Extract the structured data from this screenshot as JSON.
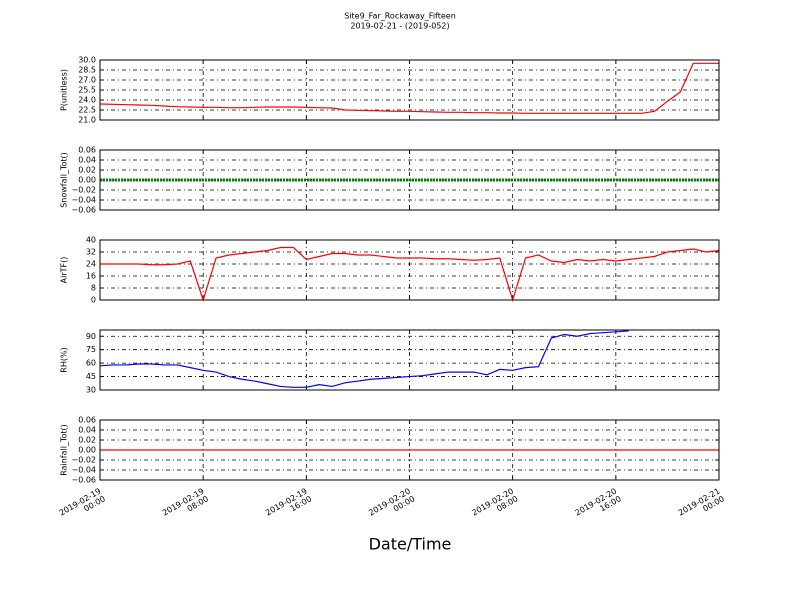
{
  "chart_data": [
    {
      "type": "line",
      "title": "Site9_Far_Rockaway_Fifteen",
      "subtitle": "2019-02-21 - (2019-052)",
      "ylabel": "P(unitless)",
      "color": "#ff0000",
      "x": [
        "2019-02-19 00:00",
        "2019-02-19 01:00",
        "2019-02-19 02:00",
        "2019-02-19 03:00",
        "2019-02-19 04:00",
        "2019-02-19 05:00",
        "2019-02-19 06:00",
        "2019-02-19 07:00",
        "2019-02-19 08:00",
        "2019-02-19 09:00",
        "2019-02-19 10:00",
        "2019-02-19 11:00",
        "2019-02-19 12:00",
        "2019-02-19 13:00",
        "2019-02-19 14:00",
        "2019-02-19 15:00",
        "2019-02-19 16:00",
        "2019-02-19 17:00",
        "2019-02-19 18:00",
        "2019-02-19 19:00",
        "2019-02-19 20:00",
        "2019-02-19 21:00",
        "2019-02-19 22:00",
        "2019-02-19 23:00",
        "2019-02-20 00:00",
        "2019-02-20 01:00",
        "2019-02-20 02:00",
        "2019-02-20 03:00",
        "2019-02-20 04:00",
        "2019-02-20 05:00",
        "2019-02-20 06:00",
        "2019-02-20 07:00",
        "2019-02-20 08:00",
        "2019-02-20 09:00",
        "2019-02-20 10:00",
        "2019-02-20 11:00",
        "2019-02-20 12:00",
        "2019-02-20 13:00",
        "2019-02-20 14:00",
        "2019-02-20 15:00",
        "2019-02-20 16:00",
        "2019-02-20 17:00",
        "2019-02-20 18:00",
        "2019-02-20 19:00",
        "2019-02-20 20:00",
        "2019-02-20 21:00",
        "2019-02-20 22:00",
        "2019-02-20 23:00",
        "2019-02-21 00:00"
      ],
      "values": [
        23.4,
        23.35,
        23.3,
        23.25,
        23.2,
        23.1,
        23.0,
        22.95,
        22.9,
        22.9,
        22.85,
        22.85,
        22.9,
        22.95,
        22.95,
        22.95,
        22.9,
        22.85,
        22.8,
        22.5,
        22.45,
        22.4,
        22.35,
        22.3,
        22.3,
        22.25,
        22.2,
        22.15,
        22.15,
        22.1,
        22.1,
        22.05,
        22.05,
        22.0,
        22.0,
        22.0,
        22.0,
        22.0,
        22.0,
        22.0,
        22.0,
        22.0,
        22.0,
        22.3,
        23.8,
        25.2,
        29.5,
        29.5,
        29.5
      ],
      "xlim": [
        "2019-02-19 00:00",
        "2019-02-21 00:00"
      ],
      "ylim": [
        21,
        30
      ],
      "yticks": [
        {
          "value": 21,
          "label": "21.0"
        },
        {
          "value": 22.5,
          "label": "22.5"
        },
        {
          "value": 24,
          "label": "24.0"
        },
        {
          "value": 25.5,
          "label": "25.5"
        },
        {
          "value": 27,
          "label": "27.0"
        },
        {
          "value": 28.5,
          "label": "28.5"
        },
        {
          "value": 30,
          "label": "30.0"
        }
      ],
      "grid": true
    },
    {
      "type": "line",
      "ylabel": "Snowfall_Tot()",
      "color": "#008000",
      "x": [
        "2019-02-19 00:00",
        "2019-02-19 01:00",
        "2019-02-19 02:00",
        "2019-02-19 03:00",
        "2019-02-19 04:00",
        "2019-02-19 05:00",
        "2019-02-19 06:00",
        "2019-02-19 07:00",
        "2019-02-19 08:00",
        "2019-02-19 09:00",
        "2019-02-19 10:00",
        "2019-02-19 11:00",
        "2019-02-19 12:00",
        "2019-02-19 13:00",
        "2019-02-19 14:00",
        "2019-02-19 15:00",
        "2019-02-19 16:00",
        "2019-02-19 17:00",
        "2019-02-19 18:00",
        "2019-02-19 19:00",
        "2019-02-19 20:00",
        "2019-02-19 21:00",
        "2019-02-19 22:00",
        "2019-02-19 23:00",
        "2019-02-20 00:00",
        "2019-02-20 01:00",
        "2019-02-20 02:00",
        "2019-02-20 03:00",
        "2019-02-20 04:00",
        "2019-02-20 05:00",
        "2019-02-20 06:00",
        "2019-02-20 07:00",
        "2019-02-20 08:00",
        "2019-02-20 09:00",
        "2019-02-20 10:00",
        "2019-02-20 11:00",
        "2019-02-20 12:00",
        "2019-02-20 13:00",
        "2019-02-20 14:00",
        "2019-02-20 15:00",
        "2019-02-20 16:00",
        "2019-02-20 17:00",
        "2019-02-20 18:00",
        "2019-02-20 19:00",
        "2019-02-20 20:00",
        "2019-02-20 21:00",
        "2019-02-20 22:00",
        "2019-02-20 23:00",
        "2019-02-21 00:00"
      ],
      "values": [
        0,
        0,
        0,
        0,
        0,
        0,
        0,
        0,
        0,
        0,
        0,
        0,
        0,
        0,
        0,
        0,
        0,
        0,
        0,
        0,
        0,
        0,
        0,
        0,
        0,
        0,
        0,
        0,
        0,
        0,
        0,
        0,
        0,
        0,
        0,
        0,
        0,
        0,
        0,
        0,
        0,
        0,
        0,
        0,
        0,
        0,
        0,
        0,
        0
      ],
      "xlim": [
        "2019-02-19 00:00",
        "2019-02-21 00:00"
      ],
      "ylim": [
        -0.06,
        0.06
      ],
      "yticks": [
        {
          "value": -0.06,
          "label": "−0.06"
        },
        {
          "value": -0.04,
          "label": "−0.04"
        },
        {
          "value": -0.02,
          "label": "−0.02"
        },
        {
          "value": 0,
          "label": "0.00"
        },
        {
          "value": 0.02,
          "label": "0.02"
        },
        {
          "value": 0.04,
          "label": "0.04"
        },
        {
          "value": 0.06,
          "label": "0.06"
        }
      ],
      "grid": true
    },
    {
      "type": "line",
      "ylabel": "AirTF()",
      "color": "#ff0000",
      "x": [
        "2019-02-19 00:00",
        "2019-02-19 01:00",
        "2019-02-19 02:00",
        "2019-02-19 03:00",
        "2019-02-19 04:00",
        "2019-02-19 05:00",
        "2019-02-19 06:00",
        "2019-02-19 07:00",
        "2019-02-19 08:00",
        "2019-02-19 09:00",
        "2019-02-19 10:00",
        "2019-02-19 11:00",
        "2019-02-19 12:00",
        "2019-02-19 13:00",
        "2019-02-19 14:00",
        "2019-02-19 15:00",
        "2019-02-19 16:00",
        "2019-02-19 17:00",
        "2019-02-19 18:00",
        "2019-02-19 19:00",
        "2019-02-19 20:00",
        "2019-02-19 21:00",
        "2019-02-19 22:00",
        "2019-02-19 23:00",
        "2019-02-20 00:00",
        "2019-02-20 01:00",
        "2019-02-20 02:00",
        "2019-02-20 03:00",
        "2019-02-20 04:00",
        "2019-02-20 05:00",
        "2019-02-20 06:00",
        "2019-02-20 07:00",
        "2019-02-20 08:00",
        "2019-02-20 09:00",
        "2019-02-20 10:00",
        "2019-02-20 11:00",
        "2019-02-20 12:00",
        "2019-02-20 13:00",
        "2019-02-20 14:00",
        "2019-02-20 15:00",
        "2019-02-20 16:00",
        "2019-02-20 17:00",
        "2019-02-20 18:00",
        "2019-02-20 19:00",
        "2019-02-20 20:00",
        "2019-02-20 21:00",
        "2019-02-20 22:00",
        "2019-02-20 23:00",
        "2019-02-21 00:00"
      ],
      "values": [
        24,
        24,
        24,
        24,
        23.5,
        23.5,
        24,
        26,
        0,
        28,
        30,
        31,
        32,
        33,
        35,
        35,
        27,
        29,
        31,
        31,
        30,
        30,
        29,
        28,
        28,
        28,
        27.5,
        27.5,
        27,
        26.5,
        27,
        28,
        0,
        28,
        30,
        26,
        25,
        27,
        26,
        27,
        26,
        27,
        28,
        29,
        32,
        33,
        34,
        32,
        33
      ],
      "xlim": [
        "2019-02-19 00:00",
        "2019-02-21 00:00"
      ],
      "ylim": [
        0,
        40
      ],
      "yticks": [
        0,
        8,
        16,
        24,
        32,
        40
      ],
      "grid": true
    },
    {
      "type": "line",
      "ylabel": "RH(%)",
      "color": "#0000ff",
      "x": [
        "2019-02-19 00:00",
        "2019-02-19 01:00",
        "2019-02-19 02:00",
        "2019-02-19 03:00",
        "2019-02-19 04:00",
        "2019-02-19 05:00",
        "2019-02-19 06:00",
        "2019-02-19 07:00",
        "2019-02-19 08:00",
        "2019-02-19 09:00",
        "2019-02-19 10:00",
        "2019-02-19 11:00",
        "2019-02-19 12:00",
        "2019-02-19 13:00",
        "2019-02-19 14:00",
        "2019-02-19 15:00",
        "2019-02-19 16:00",
        "2019-02-19 17:00",
        "2019-02-19 18:00",
        "2019-02-19 19:00",
        "2019-02-19 20:00",
        "2019-02-19 21:00",
        "2019-02-19 22:00",
        "2019-02-19 23:00",
        "2019-02-20 00:00",
        "2019-02-20 01:00",
        "2019-02-20 02:00",
        "2019-02-20 03:00",
        "2019-02-20 04:00",
        "2019-02-20 05:00",
        "2019-02-20 06:00",
        "2019-02-20 07:00",
        "2019-02-20 08:00",
        "2019-02-20 09:00",
        "2019-02-20 10:00",
        "2019-02-20 11:00",
        "2019-02-20 12:00",
        "2019-02-20 13:00",
        "2019-02-20 14:00",
        "2019-02-20 15:00",
        "2019-02-20 16:00",
        "2019-02-20 17:00",
        "2019-02-20 18:00",
        "2019-02-20 19:00",
        "2019-02-20 20:00",
        "2019-02-20 21:00",
        "2019-02-20 22:00",
        "2019-02-20 23:00",
        "2019-02-21 00:00"
      ],
      "values": [
        57,
        58,
        58,
        59,
        59,
        58,
        58,
        55,
        52,
        50,
        45,
        42,
        40,
        37,
        34,
        33,
        33,
        36,
        34,
        38,
        40,
        42,
        43,
        44,
        45,
        46,
        48,
        50,
        50,
        50,
        47,
        53,
        52,
        55,
        56,
        88,
        92,
        90,
        93,
        94,
        95,
        96,
        null,
        null,
        null,
        null,
        null,
        null,
        null
      ],
      "xlim": [
        "2019-02-19 00:00",
        "2019-02-21 00:00"
      ],
      "ylim": [
        30,
        97
      ],
      "yticks": [
        30,
        45,
        60,
        75,
        90
      ],
      "grid": true
    },
    {
      "type": "line",
      "ylabel": "Rainfall_Tot()",
      "xlabel": "Date/Time",
      "color": "#ff0000",
      "x": [
        "2019-02-19 00:00",
        "2019-02-19 01:00",
        "2019-02-19 02:00",
        "2019-02-19 03:00",
        "2019-02-19 04:00",
        "2019-02-19 05:00",
        "2019-02-19 06:00",
        "2019-02-19 07:00",
        "2019-02-19 08:00",
        "2019-02-19 09:00",
        "2019-02-19 10:00",
        "2019-02-19 11:00",
        "2019-02-19 12:00",
        "2019-02-19 13:00",
        "2019-02-19 14:00",
        "2019-02-19 15:00",
        "2019-02-19 16:00",
        "2019-02-19 17:00",
        "2019-02-19 18:00",
        "2019-02-19 19:00",
        "2019-02-19 20:00",
        "2019-02-19 21:00",
        "2019-02-19 22:00",
        "2019-02-19 23:00",
        "2019-02-20 00:00",
        "2019-02-20 01:00",
        "2019-02-20 02:00",
        "2019-02-20 03:00",
        "2019-02-20 04:00",
        "2019-02-20 05:00",
        "2019-02-20 06:00",
        "2019-02-20 07:00",
        "2019-02-20 08:00",
        "2019-02-20 09:00",
        "2019-02-20 10:00",
        "2019-02-20 11:00",
        "2019-02-20 12:00",
        "2019-02-20 13:00",
        "2019-02-20 14:00",
        "2019-02-20 15:00",
        "2019-02-20 16:00",
        "2019-02-20 17:00",
        "2019-02-20 18:00",
        "2019-02-20 19:00",
        "2019-02-20 20:00",
        "2019-02-20 21:00",
        "2019-02-20 22:00",
        "2019-02-20 23:00",
        "2019-02-21 00:00"
      ],
      "values": [
        0,
        0,
        0,
        0,
        0,
        0,
        0,
        0,
        0,
        0,
        0,
        0,
        0,
        0,
        0,
        0,
        0,
        0,
        0,
        0,
        0,
        0,
        0,
        0,
        0,
        0,
        0,
        0,
        0,
        0,
        0,
        0,
        0,
        0,
        0,
        0,
        0,
        0,
        0,
        0,
        0,
        0,
        0,
        0,
        0,
        0,
        0,
        0,
        0
      ],
      "xlim": [
        "2019-02-19 00:00",
        "2019-02-21 00:00"
      ],
      "ylim": [
        -0.06,
        0.06
      ],
      "xticks": [
        {
          "value": "2019-02-19 00:00",
          "label": "2019-02-19\n00:00"
        },
        {
          "value": "2019-02-19 08:00",
          "label": "2019-02-19\n08:00"
        },
        {
          "value": "2019-02-19 16:00",
          "label": "2019-02-19\n16:00"
        },
        {
          "value": "2019-02-20 00:00",
          "label": "2019-02-20\n00:00"
        },
        {
          "value": "2019-02-20 08:00",
          "label": "2019-02-20\n08:00"
        },
        {
          "value": "2019-02-20 16:00",
          "label": "2019-02-20\n16:00"
        },
        {
          "value": "2019-02-21 00:00",
          "label": "2019-02-21\n00:00"
        }
      ],
      "yticks": [
        {
          "value": -0.06,
          "label": "−0.06"
        },
        {
          "value": -0.04,
          "label": "−0.04"
        },
        {
          "value": -0.02,
          "label": "−0.02"
        },
        {
          "value": 0,
          "label": "0.00"
        },
        {
          "value": 0.02,
          "label": "0.02"
        },
        {
          "value": 0.04,
          "label": "0.04"
        },
        {
          "value": 0.06,
          "label": "0.06"
        }
      ],
      "grid": true
    }
  ]
}
